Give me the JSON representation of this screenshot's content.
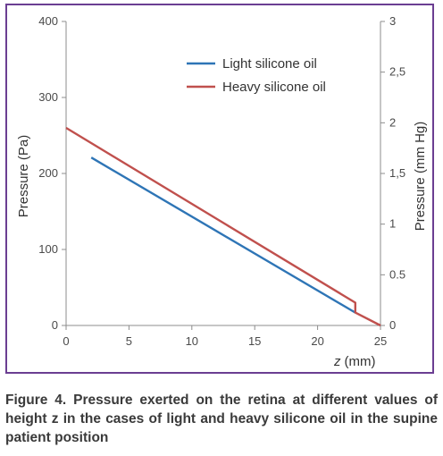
{
  "chart_data": {
    "type": "line",
    "title": "",
    "xlabel_italic": "z",
    "xlabel_unit": "(mm)",
    "ylabel": "Pressure (Pa)",
    "y2label": "Pressure (mm Hg)",
    "xlim": [
      0,
      25
    ],
    "ylim": [
      0,
      400
    ],
    "y2lim": [
      0,
      3
    ],
    "x_ticks": [
      "0",
      "5",
      "10",
      "15",
      "20",
      "25"
    ],
    "y_ticks": [
      "0",
      "100",
      "200",
      "300",
      "400"
    ],
    "y2_ticks": [
      "0",
      "0.5",
      "1",
      "1,5",
      "2",
      "2,5",
      "3"
    ],
    "grid": false,
    "legend_position": "top-center",
    "series": [
      {
        "name": "Light silicone oil",
        "color": "#2e75b6",
        "x": [
          2,
          23
        ],
        "y": [
          221,
          17
        ]
      },
      {
        "name": "Heavy silicone oil",
        "color": "#c0504d",
        "x": [
          0,
          23,
          23,
          25
        ],
        "y": [
          260,
          30,
          17,
          0
        ]
      }
    ]
  },
  "caption": "Figure 4. Pressure exerted on the retina at different values of height z in the cases of light and heavy silicone oil in the supine patient position"
}
